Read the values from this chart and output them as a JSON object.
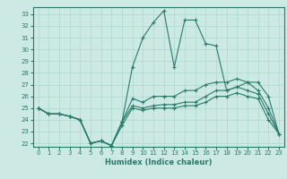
{
  "xlabel": "Humidex (Indice chaleur)",
  "bg_color": "#cce9e4",
  "line_color": "#2a7a6a",
  "xlim": [
    -0.5,
    23.5
  ],
  "ylim": [
    21.7,
    33.6
  ],
  "yticks": [
    22,
    23,
    24,
    25,
    26,
    27,
    28,
    29,
    30,
    31,
    32,
    33
  ],
  "xticks": [
    0,
    1,
    2,
    3,
    4,
    5,
    6,
    7,
    8,
    9,
    10,
    11,
    12,
    13,
    14,
    15,
    16,
    17,
    18,
    19,
    20,
    21,
    22,
    23
  ],
  "lines": [
    {
      "x": [
        0,
        1,
        2,
        3,
        4,
        5,
        6,
        7,
        8,
        9,
        10,
        11,
        12,
        13,
        14,
        15,
        16,
        17,
        18,
        19,
        20,
        21,
        22,
        23
      ],
      "y": [
        25,
        24.5,
        24.5,
        24.3,
        24.0,
        22.0,
        22.2,
        21.8,
        23.8,
        28.5,
        31.0,
        32.3,
        33.3,
        28.5,
        32.5,
        32.5,
        30.5,
        30.3,
        26.5,
        26.8,
        27.2,
        27.2,
        26.0,
        22.8
      ]
    },
    {
      "x": [
        0,
        1,
        2,
        3,
        4,
        5,
        6,
        7,
        8,
        9,
        10,
        11,
        12,
        13,
        14,
        15,
        16,
        17,
        18,
        19,
        20,
        21,
        22,
        23
      ],
      "y": [
        25,
        24.5,
        24.5,
        24.3,
        24.0,
        22.0,
        22.2,
        21.8,
        23.8,
        25.8,
        25.5,
        26.0,
        26.0,
        26.0,
        26.5,
        26.5,
        27.0,
        27.2,
        27.2,
        27.5,
        27.2,
        26.5,
        25.0,
        22.8
      ]
    },
    {
      "x": [
        0,
        1,
        2,
        3,
        4,
        5,
        6,
        7,
        8,
        9,
        10,
        11,
        12,
        13,
        14,
        15,
        16,
        17,
        18,
        19,
        20,
        21,
        22,
        23
      ],
      "y": [
        25,
        24.5,
        24.5,
        24.3,
        24.0,
        22.0,
        22.2,
        21.8,
        23.8,
        25.2,
        25.0,
        25.2,
        25.3,
        25.3,
        25.5,
        25.5,
        26.0,
        26.5,
        26.5,
        26.8,
        26.5,
        26.2,
        24.5,
        22.8
      ]
    },
    {
      "x": [
        0,
        1,
        2,
        3,
        4,
        5,
        6,
        7,
        8,
        9,
        10,
        11,
        12,
        13,
        14,
        15,
        16,
        17,
        18,
        19,
        20,
        21,
        22,
        23
      ],
      "y": [
        25,
        24.5,
        24.5,
        24.3,
        24.0,
        22.0,
        22.2,
        21.8,
        23.5,
        25.0,
        24.8,
        25.0,
        25.0,
        25.0,
        25.2,
        25.2,
        25.5,
        26.0,
        26.0,
        26.3,
        26.0,
        25.8,
        24.0,
        22.8
      ]
    }
  ]
}
